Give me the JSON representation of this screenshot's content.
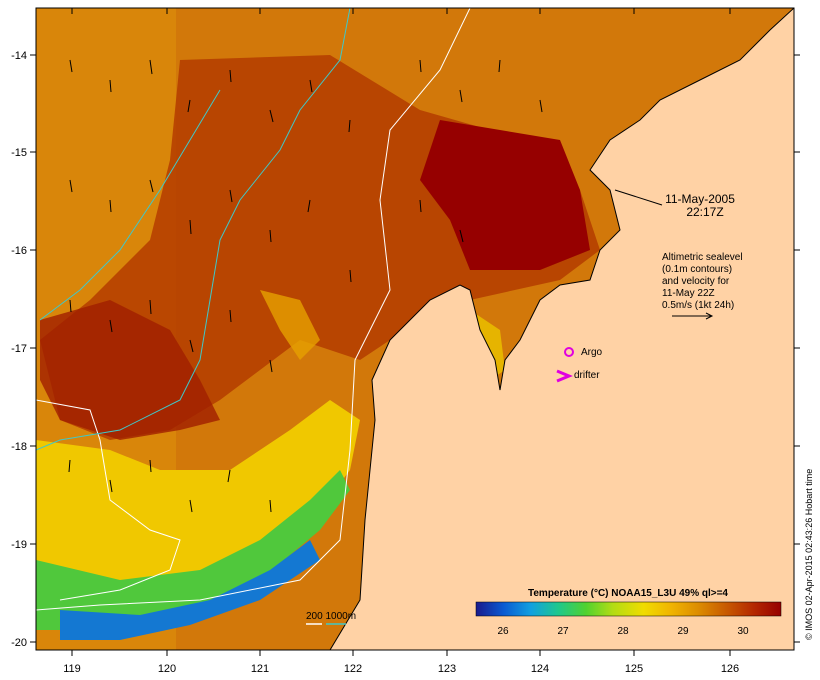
{
  "map": {
    "date_line1": "11-May-2005",
    "date_line2": "22:17Z",
    "legend_lines": [
      "Altimetric sealevel",
      "(0.1m contours)",
      "and velocity for",
      "11-May 22Z",
      "0.5m/s (1kt 24h)"
    ],
    "argo_label": "Argo",
    "drifter_label": "drifter",
    "isobath_label": "200  1000m",
    "credit": "© IMOS 02-Apr-2015 02:43:26 Hobart time",
    "x_ticks": [
      "119",
      "120",
      "121",
      "122",
      "123",
      "124",
      "125",
      "126"
    ],
    "y_ticks": [
      "-14",
      "-15",
      "-16",
      "-17",
      "-18",
      "-19",
      "-20"
    ],
    "colorbar": {
      "title": "Temperature (°C) NOAA15_L3U 49% ql>=4",
      "ticks": [
        "26",
        "27",
        "28",
        "29",
        "30"
      ],
      "colors": [
        "#1a1a8c",
        "#0a5ad2",
        "#12a0e0",
        "#1ec88c",
        "#50d230",
        "#b4dc14",
        "#f0dc00",
        "#f0b400",
        "#dc8c00",
        "#c85a00",
        "#b42800",
        "#960000"
      ]
    },
    "colors": {
      "land": "#ffd2a5",
      "isobath_200": "#ffffff",
      "isobath_1000": "#40c8c8",
      "argo": "#e000e0",
      "drifter": "#e000e0"
    }
  }
}
